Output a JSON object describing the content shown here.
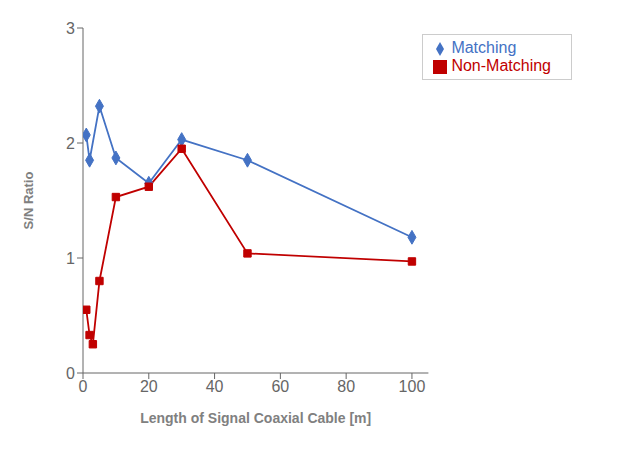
{
  "chart_data": {
    "type": "line",
    "xlabel": "Length of Signal Coaxial Cable [m]",
    "ylabel": "S/N Ratio",
    "series": [
      {
        "name": "Matching",
        "color": "#4472C4",
        "marker": "diamond",
        "x": [
          1,
          2,
          5,
          10,
          20,
          30,
          50,
          100
        ],
        "values": [
          2.07,
          1.85,
          2.32,
          1.87,
          1.65,
          2.03,
          1.85,
          1.18
        ]
      },
      {
        "name": "Non-Matching",
        "color": "#C00000",
        "marker": "square",
        "x": [
          1,
          2,
          3,
          5,
          10,
          20,
          30,
          50,
          100
        ],
        "values": [
          0.55,
          0.33,
          0.25,
          0.8,
          1.53,
          1.62,
          1.95,
          1.04,
          0.97
        ]
      }
    ],
    "xlim": [
      0,
      105
    ],
    "ylim": [
      0,
      3
    ],
    "xticks": [
      0,
      20,
      40,
      60,
      80,
      100
    ],
    "yticks": [
      0,
      1,
      2,
      3
    ],
    "grid": false,
    "legend": "upper right"
  }
}
